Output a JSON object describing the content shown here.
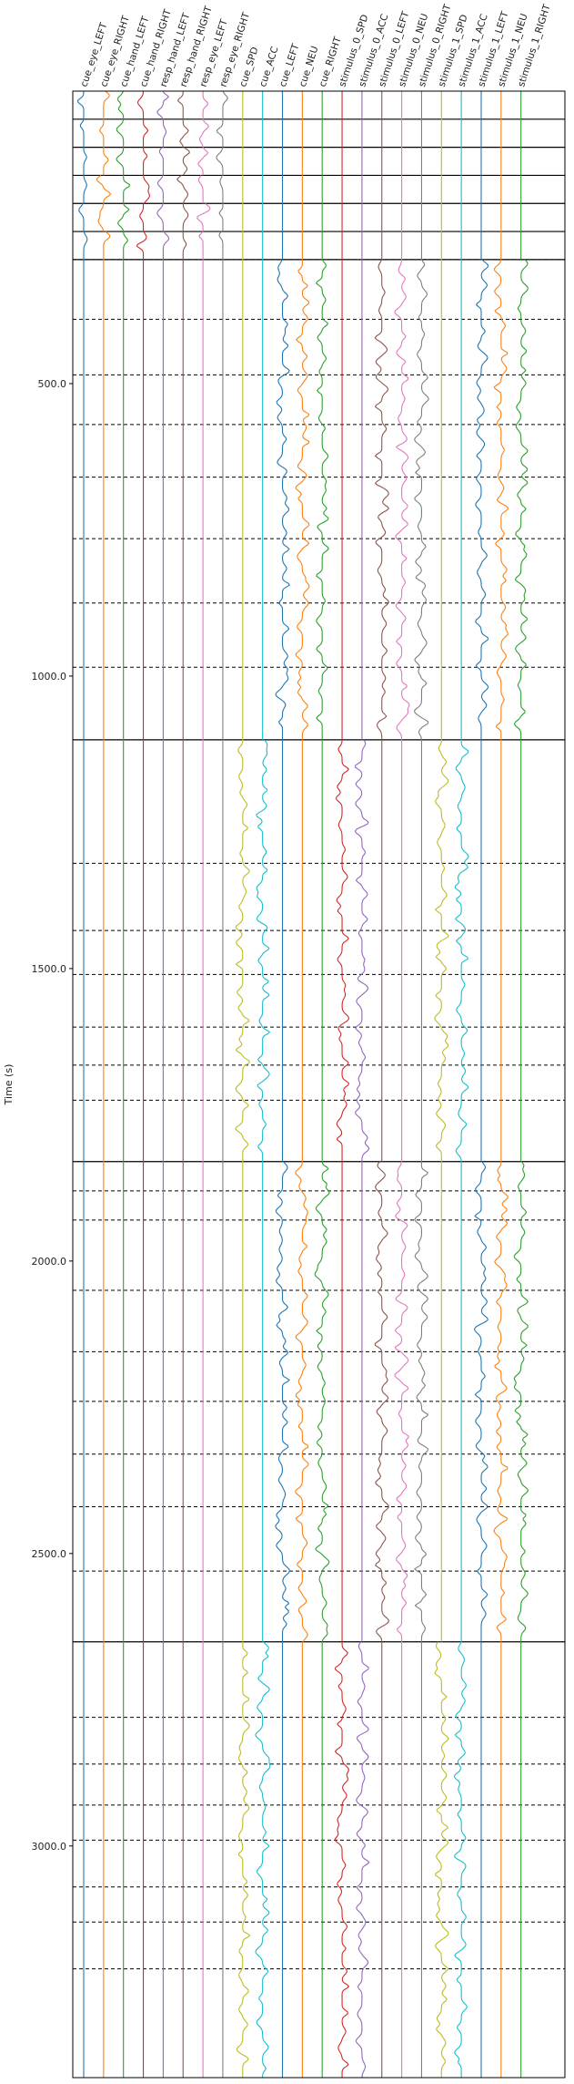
{
  "chart_data": {
    "type": "line",
    "ylabel": "Time (s)",
    "ylim": [
      3396,
      0
    ],
    "y_ticks": [
      500.0,
      1000.0,
      1500.0,
      2000.0,
      2500.0,
      3000.0
    ],
    "y_tick_labels": [
      "500.0",
      "1000.0",
      "1500.0",
      "2000.0",
      "2500.0",
      "3000.0"
    ],
    "channels": [
      {
        "name": "cue_eye_LEFT",
        "color": "#1f77b4"
      },
      {
        "name": "cue_eye_RIGHT",
        "color": "#ff7f0e"
      },
      {
        "name": "cue_hand_LEFT",
        "color": "#2ca02c"
      },
      {
        "name": "cue_hand_RIGHT",
        "color": "#d62728"
      },
      {
        "name": "resp_hand_LEFT",
        "color": "#9467bd"
      },
      {
        "name": "resp_hand_RIGHT",
        "color": "#8c564b"
      },
      {
        "name": "resp_eye_LEFT",
        "color": "#e377c2"
      },
      {
        "name": "resp_eye_RIGHT",
        "color": "#7f7f7f"
      },
      {
        "name": "cue_SPD",
        "color": "#bcbd22"
      },
      {
        "name": "cue_ACC",
        "color": "#17becf"
      },
      {
        "name": "cue_LEFT",
        "color": "#1f77b4"
      },
      {
        "name": "cue_NEU",
        "color": "#ff7f0e"
      },
      {
        "name": "cue_RIGHT",
        "color": "#2ca02c"
      },
      {
        "name": "stimulus_0_SPD",
        "color": "#d62728"
      },
      {
        "name": "stimulus_0_ACC",
        "color": "#9467bd"
      },
      {
        "name": "stimulus_0_LEFT",
        "color": "#8c564b"
      },
      {
        "name": "stimulus_0_NEU",
        "color": "#e377c2"
      },
      {
        "name": "stimulus_0_RIGHT",
        "color": "#7f7f7f"
      },
      {
        "name": "stimulus_1_SPD",
        "color": "#bcbd22"
      },
      {
        "name": "stimulus_1_ACC",
        "color": "#17becf"
      },
      {
        "name": "stimulus_1_LEFT",
        "color": "#1f77b4"
      },
      {
        "name": "stimulus_1_NEU",
        "color": "#ff7f0e"
      },
      {
        "name": "stimulus_1_RIGHT",
        "color": "#2ca02c"
      }
    ],
    "runs": [
      {
        "start": 0,
        "end": 48,
        "active": [
          0,
          1,
          2,
          3,
          4,
          5,
          6,
          7
        ]
      },
      {
        "start": 48,
        "end": 96,
        "active": [
          0,
          1,
          2,
          3,
          4,
          5,
          6,
          7
        ]
      },
      {
        "start": 96,
        "end": 144,
        "active": [
          0,
          1,
          2,
          3,
          4,
          5,
          6,
          7
        ]
      },
      {
        "start": 144,
        "end": 192,
        "active": [
          0,
          1,
          2,
          3,
          4,
          5,
          6,
          7
        ]
      },
      {
        "start": 192,
        "end": 240,
        "active": [
          0,
          1,
          2,
          3,
          4,
          5,
          6,
          7
        ]
      },
      {
        "start": 240,
        "end": 288,
        "active": [
          0,
          1,
          2,
          3,
          4,
          5,
          6,
          7
        ]
      },
      {
        "start": 288,
        "end": 1109,
        "active": [
          10,
          11,
          12,
          15,
          16,
          17,
          20,
          21,
          22
        ]
      },
      {
        "start": 1109,
        "end": 1830,
        "active": [
          8,
          9,
          13,
          14,
          18,
          19
        ]
      },
      {
        "start": 1830,
        "end": 2651,
        "active": [
          10,
          11,
          12,
          15,
          16,
          17,
          20,
          21,
          22
        ]
      },
      {
        "start": 2651,
        "end": 3396,
        "active": [
          8,
          9,
          13,
          14,
          18,
          19
        ]
      }
    ],
    "block_boundaries": [
      288,
      390,
      485,
      570,
      660,
      765,
      875,
      985,
      1320,
      1435,
      1510,
      1600,
      1665,
      1725,
      1880,
      1930,
      2050,
      2155,
      2240,
      2330,
      2420,
      2530,
      2780,
      2860,
      2930,
      2990,
      3070,
      3130,
      3210
    ]
  }
}
